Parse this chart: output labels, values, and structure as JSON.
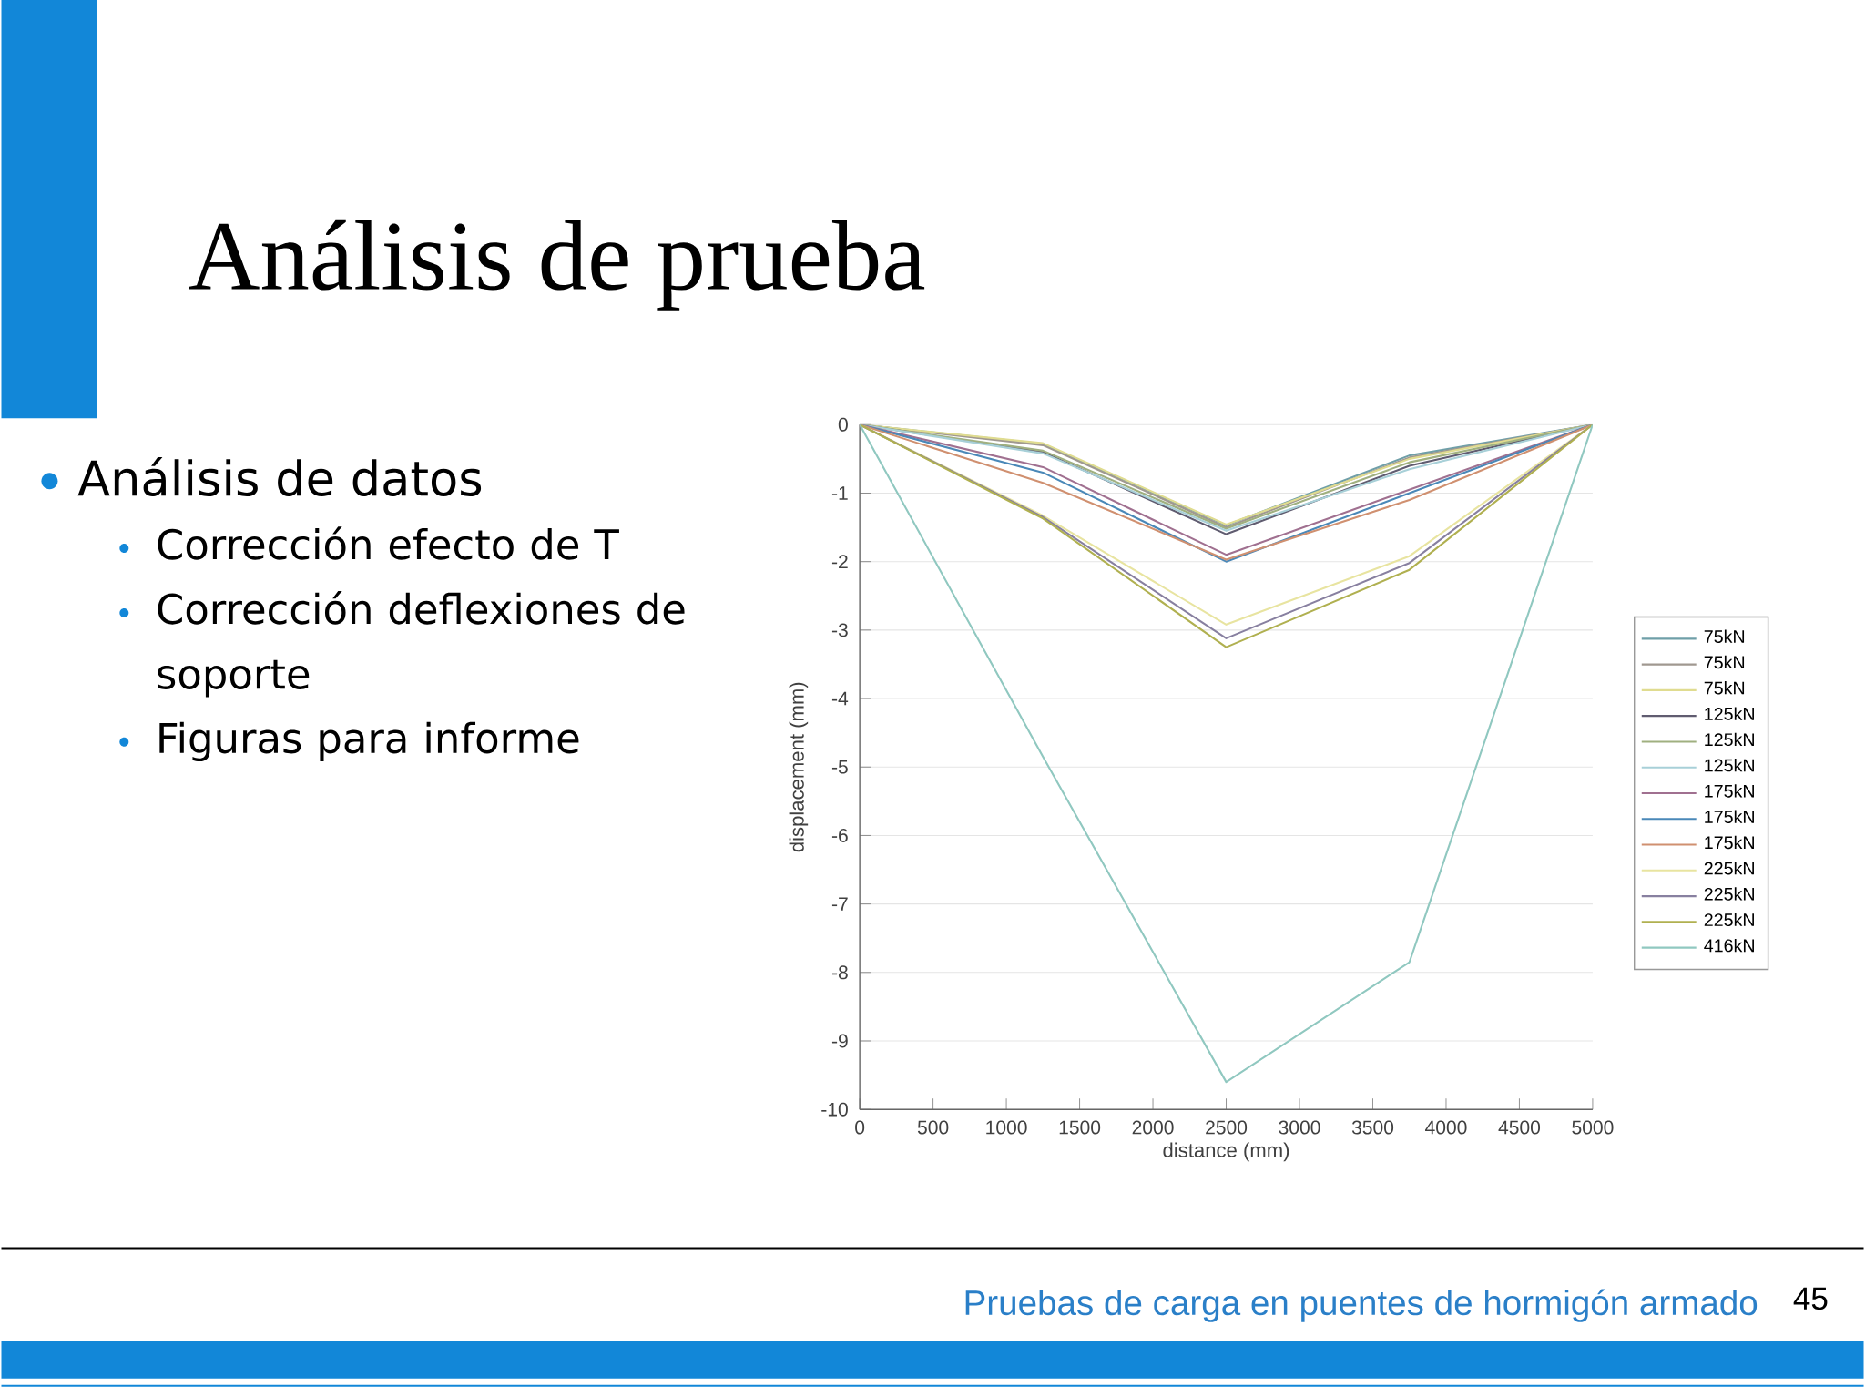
{
  "chart_data": {
    "type": "line",
    "title": "Análisis de prueba",
    "annotations": [
      "Análisis de datos",
      "Corrección efecto de T",
      "Corrección deflexiones de soporte",
      "Figuras para informe",
      "Pruebas de carga en puentes de hormigón armado",
      "45"
    ],
    "xlabel": "distance (mm)",
    "ylabel": "displacement (mm)",
    "x": [
      0,
      1250,
      2500,
      3750,
      5000
    ],
    "xlim": [
      0,
      5000
    ],
    "ylim": [
      -10,
      0
    ],
    "xticks": [
      0,
      500,
      1000,
      1500,
      2000,
      2500,
      3000,
      3500,
      4000,
      4500,
      5000
    ],
    "yticks": [
      -10,
      -9,
      -8,
      -7,
      -6,
      -5,
      -4,
      -3,
      -2,
      -1,
      0
    ],
    "grid": "y",
    "legend": "right",
    "line_style": "solid",
    "series": [
      {
        "name": "75kN",
        "color": "#6f9fa8",
        "values": [
          0,
          -0.28,
          -1.47,
          -0.45,
          0
        ]
      },
      {
        "name": "75kN",
        "color": "#a09890",
        "values": [
          0,
          -0.3,
          -1.5,
          -0.48,
          0
        ]
      },
      {
        "name": "75kN",
        "color": "#e0dc90",
        "values": [
          0,
          -0.27,
          -1.46,
          -0.5,
          0
        ]
      },
      {
        "name": "125kN",
        "color": "#605c70",
        "values": [
          0,
          -0.4,
          -1.6,
          -0.6,
          0
        ]
      },
      {
        "name": "125kN",
        "color": "#a0b080",
        "values": [
          0,
          -0.38,
          -1.52,
          -0.55,
          0
        ]
      },
      {
        "name": "125kN",
        "color": "#a8d0d8",
        "values": [
          0,
          -0.42,
          -1.55,
          -0.65,
          0
        ]
      },
      {
        "name": "175kN",
        "color": "#a07090",
        "values": [
          0,
          -0.62,
          -1.9,
          -0.95,
          0
        ]
      },
      {
        "name": "175kN",
        "color": "#4a88b8",
        "values": [
          0,
          -0.7,
          -2.0,
          -1.0,
          0
        ]
      },
      {
        "name": "175kN",
        "color": "#d09070",
        "values": [
          0,
          -0.85,
          -1.97,
          -1.1,
          0
        ]
      },
      {
        "name": "225kN",
        "color": "#e8e4a0",
        "values": [
          0,
          -1.33,
          -2.92,
          -1.92,
          0
        ]
      },
      {
        "name": "225kN",
        "color": "#8880a0",
        "values": [
          0,
          -1.35,
          -3.12,
          -2.02,
          0
        ]
      },
      {
        "name": "225kN",
        "color": "#b0b050",
        "values": [
          0,
          -1.37,
          -3.25,
          -2.12,
          0
        ]
      },
      {
        "name": "416kN",
        "color": "#90c8c0",
        "values": [
          0,
          -4.85,
          -9.6,
          -7.85,
          0
        ]
      }
    ]
  }
}
